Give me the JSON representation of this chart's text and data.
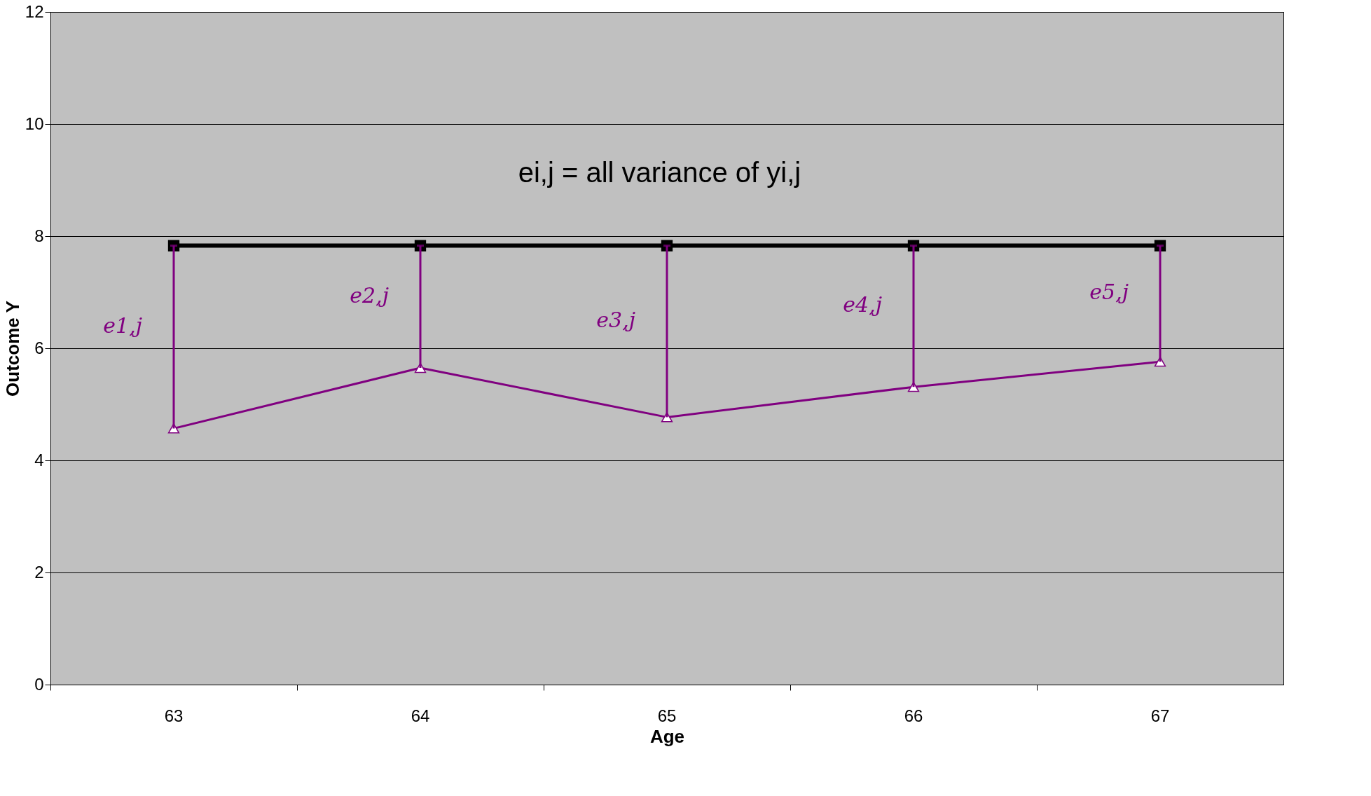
{
  "chart_data": {
    "type": "line",
    "xlabel": "Age",
    "ylabel": "Outcome Y",
    "categories": [
      "63",
      "64",
      "65",
      "66",
      "67"
    ],
    "series": [
      {
        "color": "#000000",
        "marker": "square",
        "values": [
          7.83,
          7.83,
          7.83,
          7.83,
          7.83
        ]
      },
      {
        "color": "#800080",
        "marker": "triangle",
        "values": [
          4.57,
          5.65,
          4.77,
          5.31,
          5.76
        ],
        "errors": [
          [
            4.57,
            7.83
          ],
          [
            5.65,
            7.83
          ],
          [
            4.77,
            7.83
          ],
          [
            5.31,
            7.83
          ],
          [
            5.76,
            7.83
          ]
        ]
      }
    ],
    "ylim": [
      0,
      12
    ],
    "yticks": [
      0,
      2,
      4,
      6,
      8,
      10,
      12
    ],
    "grid": "y",
    "annotations": [
      "ei,j = all variance of yi,j",
      "e1,j",
      "e2,j",
      "e3,j",
      "e4,j",
      "e5,j"
    ]
  }
}
